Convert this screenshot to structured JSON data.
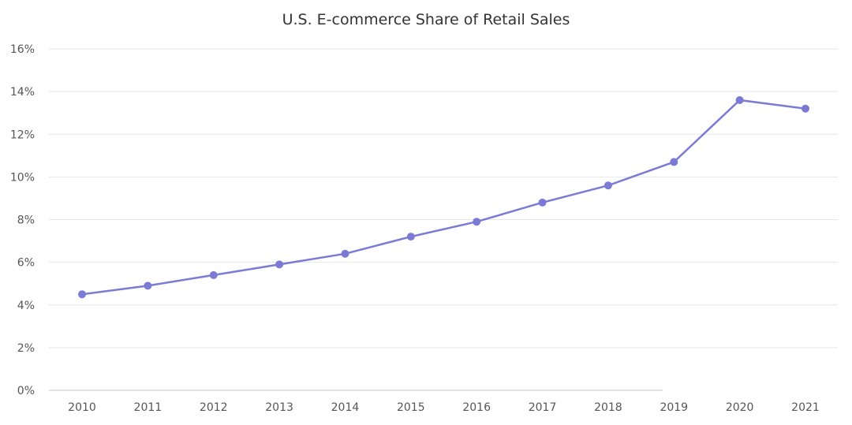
{
  "chart_data": {
    "type": "line",
    "title": "U.S. E-commerce Share of Retail Sales",
    "xlabel": "",
    "ylabel": "",
    "categories": [
      "2010",
      "2011",
      "2012",
      "2013",
      "2014",
      "2015",
      "2016",
      "2017",
      "2018",
      "2019",
      "2020",
      "2021"
    ],
    "series": [
      {
        "values": [
          4.5,
          4.9,
          5.4,
          5.9,
          6.4,
          7.2,
          7.9,
          8.8,
          9.6,
          10.7,
          13.6,
          13.2
        ],
        "color": "#7b7bd6"
      }
    ],
    "ylim": [
      0,
      16
    ],
    "yticks": [
      0,
      2,
      4,
      6,
      8,
      10,
      12,
      14,
      16
    ],
    "ytick_suffix": "%",
    "grid": true,
    "legend": "none"
  }
}
